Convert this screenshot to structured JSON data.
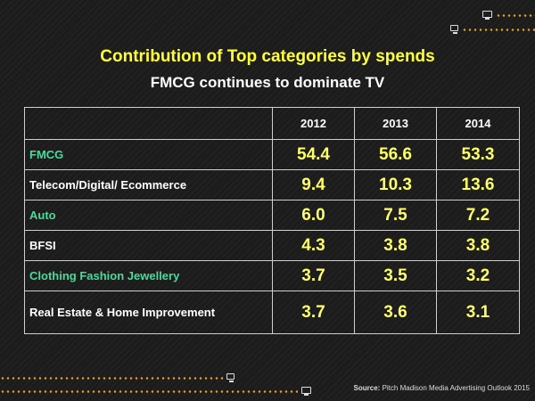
{
  "title": "Contribution of Top categories by spends",
  "subtitle": "FMCG continues to dominate TV",
  "table": {
    "headers": [
      "",
      "2012",
      "2013",
      "2014"
    ],
    "rows": [
      {
        "category": "FMCG",
        "values": [
          "54.4",
          "56.6",
          "53.3"
        ],
        "label_color": "#44dd99"
      },
      {
        "category": "Telecom/Digital/ Ecommerce",
        "values": [
          "9.4",
          "10.3",
          "13.6"
        ],
        "label_color": "#ffffff"
      },
      {
        "category": "Auto",
        "values": [
          "6.0",
          "7.5",
          "7.2"
        ],
        "label_color": "#44dd99"
      },
      {
        "category": "BFSI",
        "values": [
          "4.3",
          "3.8",
          "3.8"
        ],
        "label_color": "#ffffff"
      },
      {
        "category": "Clothing Fashion Jewellery",
        "values": [
          "3.7",
          "3.5",
          "3.2"
        ],
        "label_color": "#44dd99"
      },
      {
        "category": "Real Estate & Home Improvement",
        "values": [
          "3.7",
          "3.6",
          "3.1"
        ],
        "label_color": "#ffffff"
      }
    ]
  },
  "source": {
    "label": "Source:",
    "text": " Pitch Madison Media Advertising Outlook 2015"
  },
  "colors": {
    "title": "#ffff33",
    "values": "#ffff66",
    "accent_dots": "#f0a020",
    "background": "#1c1c1c"
  },
  "icons": [
    "tv-icon",
    "tv-icon",
    "tv-icon",
    "tv-icon"
  ]
}
